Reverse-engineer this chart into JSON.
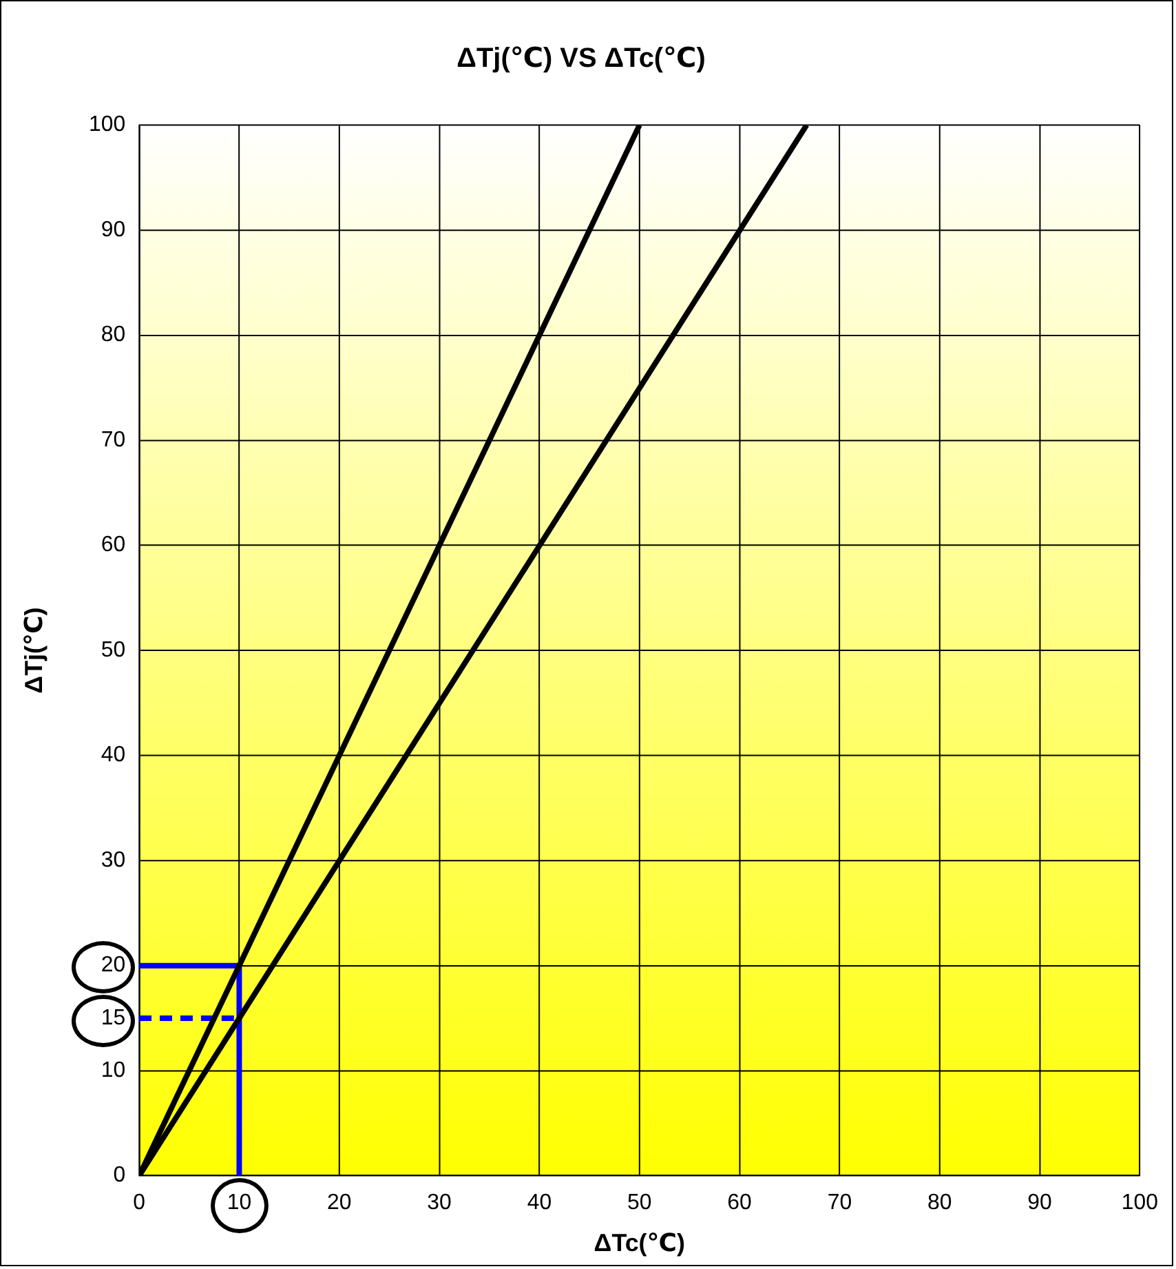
{
  "chart_data": {
    "type": "line",
    "title": "ΔTj(℃) VS ΔTc(℃)",
    "xlabel": "ΔTc(℃)",
    "ylabel": "ΔTj(℃)",
    "xlim": [
      0,
      100
    ],
    "xticks": [
      0,
      10,
      20,
      30,
      40,
      50,
      60,
      70,
      80,
      90,
      100
    ],
    "ylim": [
      0,
      100
    ],
    "yticks": [
      0,
      10,
      {
        "value": 15,
        "label": "15"
      },
      20,
      30,
      40,
      50,
      60,
      70,
      80,
      90,
      100
    ],
    "grid": true,
    "legend": false,
    "marker": "none",
    "line_style": "solid",
    "series": [
      {
        "color": "#000000",
        "x": [
          0,
          50
        ],
        "values": [
          0,
          100
        ]
      },
      {
        "color": "#000000",
        "x": [
          0,
          66.7
        ],
        "values": [
          0,
          100
        ]
      },
      {
        "color": "#0000ff",
        "x": [
          10,
          10
        ],
        "values": [
          0,
          20
        ]
      },
      {
        "color": "#0000ff",
        "x": [
          0,
          10
        ],
        "values": [
          20,
          20
        ]
      },
      {
        "color": "#0000ff",
        "x": [
          0,
          10
        ],
        "values": [
          15,
          15
        ],
        "line_style": "dashed"
      }
    ]
  }
}
